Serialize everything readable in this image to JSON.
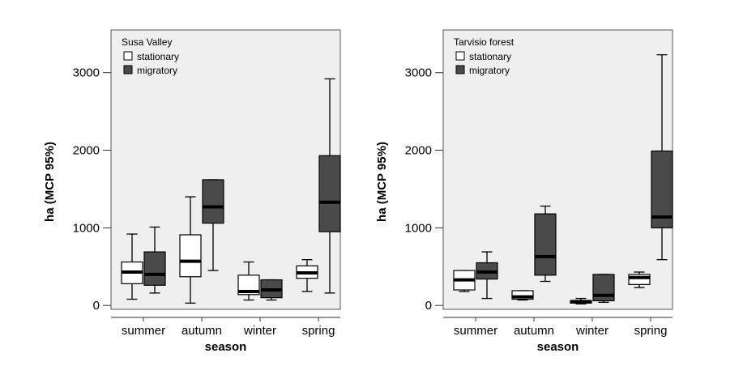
{
  "chart_data": [
    {
      "type": "boxplot",
      "title": "Susa Valley",
      "xlabel": "season",
      "ylabel": "ha (MCP 95%)",
      "categories": [
        "summer",
        "autumn",
        "winter",
        "spring"
      ],
      "ylim": [
        -50,
        3550
      ],
      "yticks": [
        0,
        1000,
        2000,
        3000
      ],
      "legend_position": "top-left",
      "series": [
        {
          "name": "stationary",
          "color": "#ffffff",
          "boxes": [
            {
              "min": 80,
              "q1": 280,
              "median": 430,
              "q3": 560,
              "max": 920
            },
            {
              "min": 30,
              "q1": 370,
              "median": 570,
              "q3": 910,
              "max": 1400
            },
            {
              "min": 70,
              "q1": 140,
              "median": 180,
              "q3": 390,
              "max": 560
            },
            {
              "min": 180,
              "q1": 350,
              "median": 420,
              "q3": 510,
              "max": 590
            }
          ]
        },
        {
          "name": "migratory",
          "color": "#4a4a4a",
          "boxes": [
            {
              "min": 160,
              "q1": 260,
              "median": 400,
              "q3": 690,
              "max": 1010
            },
            {
              "min": 450,
              "q1": 1060,
              "median": 1270,
              "q3": 1620,
              "max": 1620
            },
            {
              "min": 70,
              "q1": 100,
              "median": 200,
              "q3": 330,
              "max": 330
            },
            {
              "min": 160,
              "q1": 950,
              "median": 1330,
              "q3": 1930,
              "max": 2920
            }
          ]
        }
      ]
    },
    {
      "type": "boxplot",
      "title": "Tarvisio forest",
      "xlabel": "season",
      "ylabel": "ha (MCP 95%)",
      "categories": [
        "summer",
        "autumn",
        "winter",
        "spring"
      ],
      "ylim": [
        -50,
        3550
      ],
      "yticks": [
        0,
        1000,
        2000,
        3000
      ],
      "legend_position": "top-left",
      "series": [
        {
          "name": "stationary",
          "color": "#ffffff",
          "boxes": [
            {
              "min": 180,
              "q1": 200,
              "median": 330,
              "q3": 450,
              "max": 450
            },
            {
              "min": 70,
              "q1": 80,
              "median": 110,
              "q3": 190,
              "max": 190
            },
            {
              "min": 20,
              "q1": 30,
              "median": 50,
              "q3": 60,
              "max": 90
            },
            {
              "min": 230,
              "q1": 270,
              "median": 360,
              "q3": 400,
              "max": 430
            }
          ]
        },
        {
          "name": "migratory",
          "color": "#4a4a4a",
          "boxes": [
            {
              "min": 90,
              "q1": 340,
              "median": 430,
              "q3": 550,
              "max": 690
            },
            {
              "min": 310,
              "q1": 390,
              "median": 630,
              "q3": 1180,
              "max": 1280
            },
            {
              "min": 40,
              "q1": 60,
              "median": 130,
              "q3": 400,
              "max": 400
            },
            {
              "min": 590,
              "q1": 1000,
              "median": 1140,
              "q3": 1990,
              "max": 3230
            }
          ]
        }
      ]
    }
  ]
}
